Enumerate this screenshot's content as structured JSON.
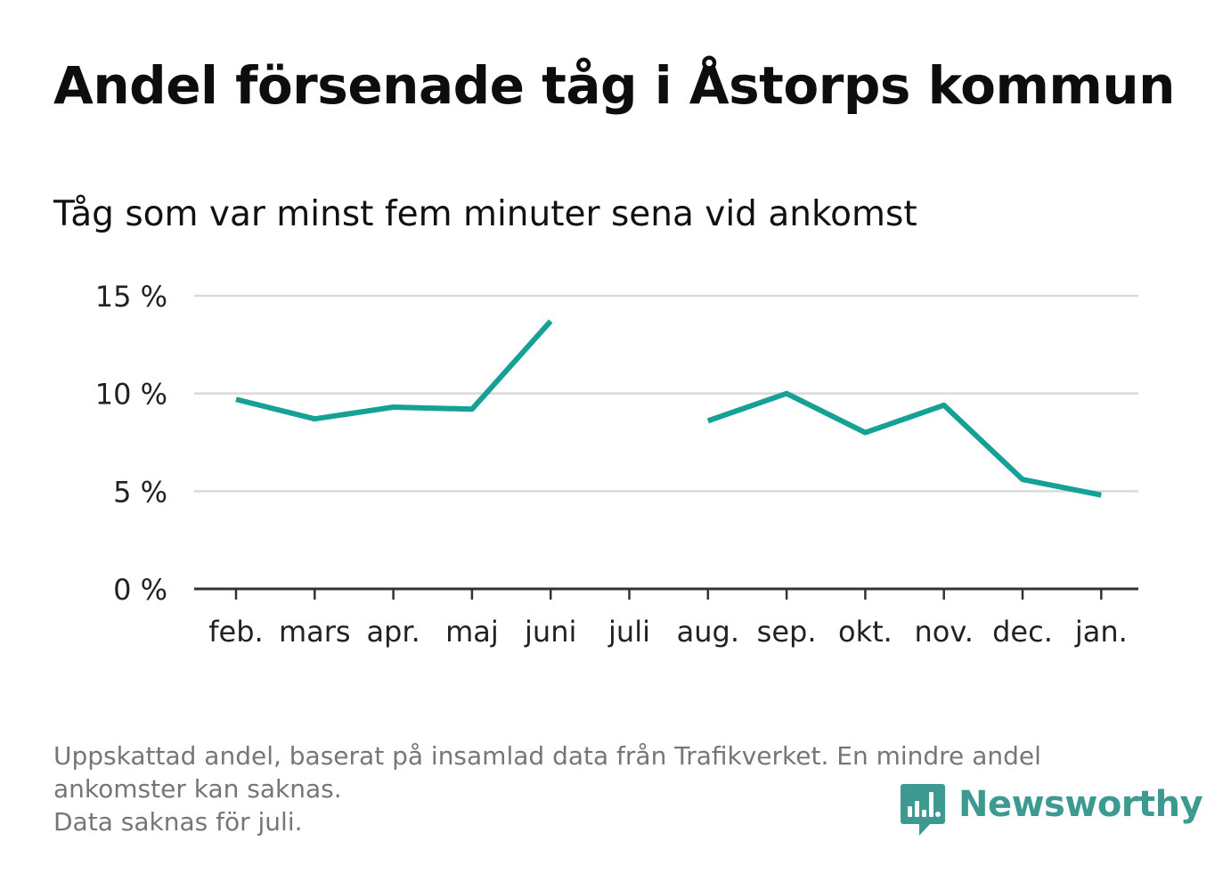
{
  "header": {
    "title": "Andel försenade tåg i Åstorps kommun",
    "subtitle": "Tåg som var minst fem minuter sena vid ankomst"
  },
  "footnote": {
    "line1": "Uppskattad andel, baserat på insamlad data från Trafikverket. En mindre andel",
    "line2": "ankomster kan saknas.",
    "line3": "Data saknas för juli."
  },
  "brand": {
    "name": "Newsworthy",
    "icon": "newsworthy-logo-icon",
    "color": "#3d9a91"
  },
  "colors": {
    "line": "#16a196",
    "grid": "#d9d9d9",
    "axis": "#333333",
    "tick_text": "#222222"
  },
  "chart_data": {
    "type": "line",
    "title": "Andel försenade tåg i Åstorps kommun",
    "subtitle": "Tåg som var minst fem minuter sena vid ankomst",
    "categories": [
      "feb.",
      "mars",
      "apr.",
      "maj",
      "juni",
      "juli",
      "aug.",
      "sep.",
      "okt.",
      "nov.",
      "dec.",
      "jan."
    ],
    "series": [
      {
        "values": [
          9.7,
          8.7,
          9.3,
          9.2,
          13.7,
          null,
          8.6,
          10.0,
          8.0,
          9.4,
          5.6,
          4.8
        ]
      }
    ],
    "ylim": [
      0,
      15
    ],
    "yticks": [
      0,
      5,
      10,
      15
    ],
    "ytick_labels": [
      "0 %",
      "5 %",
      "10 %",
      "15 %"
    ],
    "xlabel": "",
    "ylabel": "",
    "grid": true,
    "legend": "none"
  }
}
